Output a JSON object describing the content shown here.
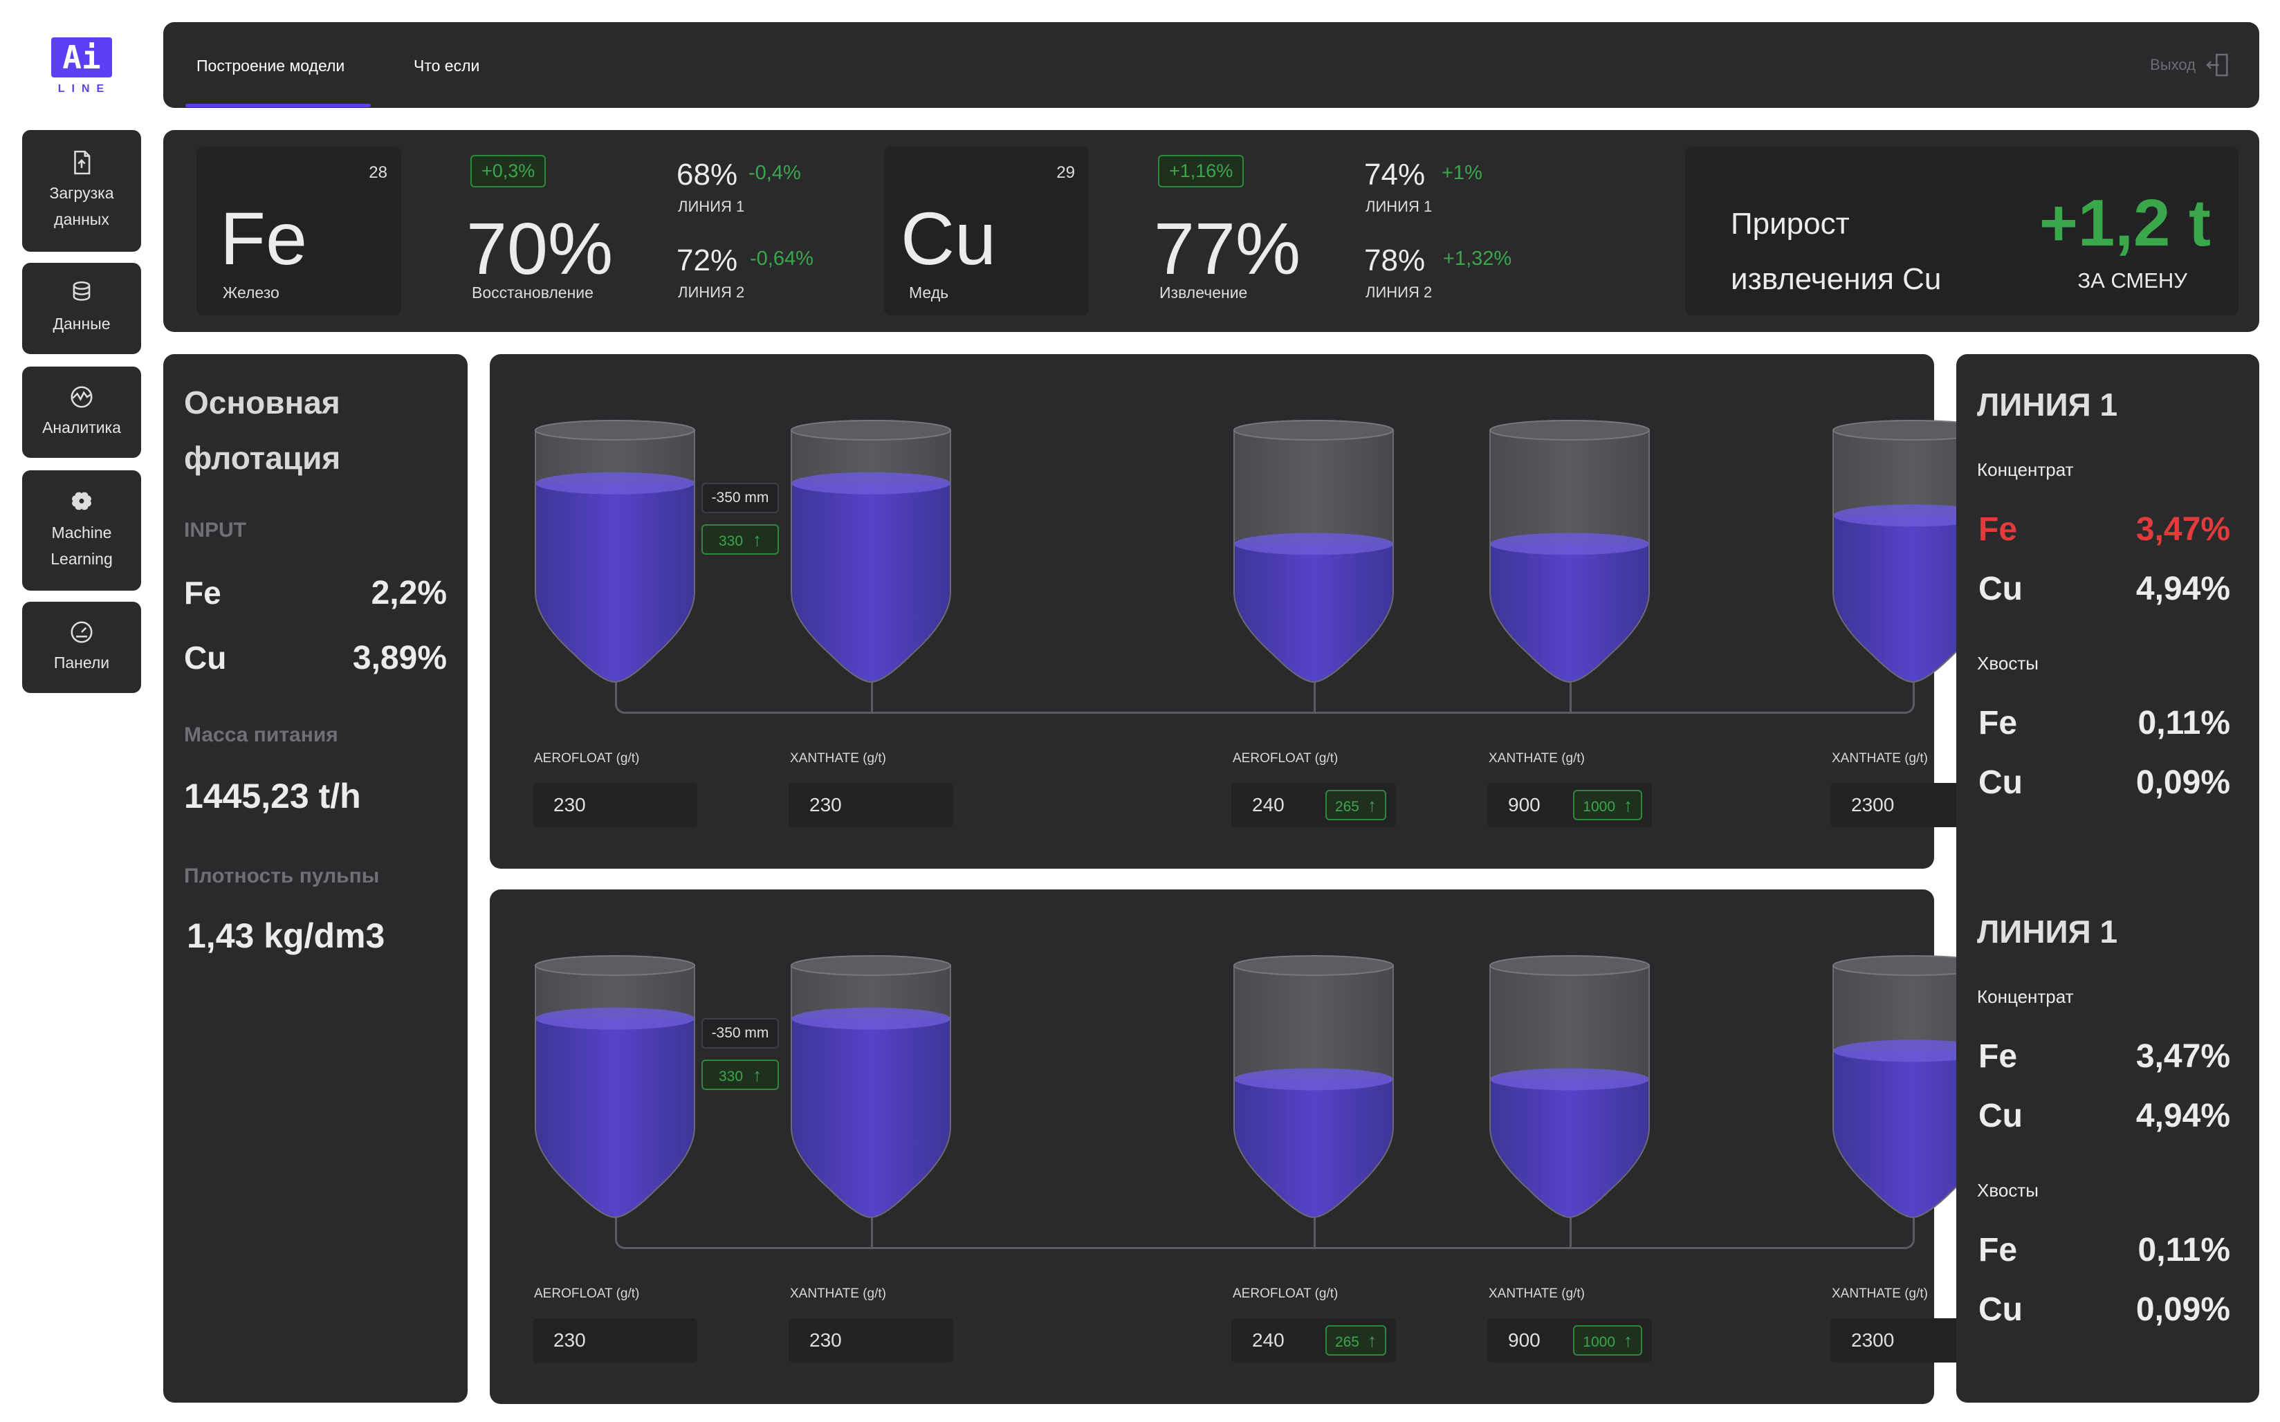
{
  "logo": {
    "main": "Ai",
    "sub": "LINE"
  },
  "sidebar": {
    "items": [
      {
        "label": "Загрузка данных",
        "icon": "upload-file-icon"
      },
      {
        "label": "Данные",
        "icon": "database-icon"
      },
      {
        "label": "Аналитика",
        "icon": "analytics-icon"
      },
      {
        "label": "Machine Learning",
        "icon": "brain-icon"
      },
      {
        "label": "Панели",
        "icon": "dashboard-gauge-icon"
      }
    ]
  },
  "topbar": {
    "tabs": [
      {
        "label": "Построение модели",
        "active": true
      },
      {
        "label": "Что если",
        "active": false
      }
    ],
    "logout_label": "Выход",
    "accent_color": "#5b3ff2"
  },
  "kpi": {
    "fe": {
      "symbol": "Fe",
      "number": "28",
      "name": "Железо",
      "badge": "+0,3%",
      "value": "70%",
      "value_label": "Восстановление",
      "lines": [
        {
          "pct": "68%",
          "delta": "-0,4%",
          "label": "ЛИНИЯ 1"
        },
        {
          "pct": "72%",
          "delta": "-0,64%",
          "label": "ЛИНИЯ 2"
        }
      ]
    },
    "cu": {
      "symbol": "Cu",
      "number": "29",
      "name": "Медь",
      "badge": "+1,16%",
      "value": "77%",
      "value_label": "Извлечение",
      "lines": [
        {
          "pct": "74%",
          "delta": "+1%",
          "label": "ЛИНИЯ 1"
        },
        {
          "pct": "78%",
          "delta": "+1,32%",
          "label": "ЛИНИЯ 2"
        }
      ]
    },
    "gain": {
      "label_line1": "Прирост",
      "label_line2": "извлечения Cu",
      "value": "+1,2 t",
      "sub": "ЗА СМЕНУ"
    },
    "positive_color": "#3aa74a"
  },
  "left_panel": {
    "title_line1": "Основная",
    "title_line2": "флотация",
    "input_label": "INPUT",
    "fe_label": "Fe",
    "fe_value": "2,2%",
    "cu_label": "Cu",
    "cu_value": "3,89%",
    "mass_label": "Масса питания",
    "mass_value": "1445,23 t/h",
    "density_label": "Плотность пульпы",
    "density_value": "1,43 kg/dm3"
  },
  "flotation_lines": [
    {
      "level_adjust": "-350 mm",
      "level_recommend": "330",
      "tanks": [
        {
          "fill": 0.72,
          "reagent": "AEROFLOAT (g/t)",
          "value": "230",
          "recommend": null
        },
        {
          "fill": 0.72,
          "reagent": "XANTHATE (g/t)",
          "value": "230",
          "recommend": null
        },
        {
          "fill": 0.4,
          "reagent": "AEROFLOAT (g/t)",
          "value": "240",
          "recommend": "265"
        },
        {
          "fill": 0.4,
          "reagent": "XANTHATE (g/t)",
          "value": "900",
          "recommend": "1000"
        },
        {
          "fill": 0.55,
          "reagent": "XANTHATE (g/t)",
          "value": "2300",
          "recommend": null
        }
      ]
    },
    {
      "level_adjust": "-350 mm",
      "level_recommend": "330",
      "tanks": [
        {
          "fill": 0.72,
          "reagent": "AEROFLOAT (g/t)",
          "value": "230",
          "recommend": null
        },
        {
          "fill": 0.72,
          "reagent": "XANTHATE (g/t)",
          "value": "230",
          "recommend": null
        },
        {
          "fill": 0.4,
          "reagent": "AEROFLOAT (g/t)",
          "value": "240",
          "recommend": "265"
        },
        {
          "fill": 0.4,
          "reagent": "XANTHATE (g/t)",
          "value": "900",
          "recommend": "1000"
        },
        {
          "fill": 0.55,
          "reagent": "XANTHATE (g/t)",
          "value": "2300",
          "recommend": null
        }
      ]
    }
  ],
  "right_panel": {
    "blocks": [
      {
        "title": "ЛИНИЯ 1",
        "concentrate_label": "Концентрат",
        "conc_fe_label": "Fe",
        "conc_fe": "3,47%",
        "conc_fe_alert": true,
        "conc_cu_label": "Cu",
        "conc_cu": "4,94%",
        "tails_label": "Хвосты",
        "tail_fe_label": "Fe",
        "tail_fe": "0,11%",
        "tail_cu_label": "Cu",
        "tail_cu": "0,09%"
      },
      {
        "title": "ЛИНИЯ 1",
        "concentrate_label": "Концентрат",
        "conc_fe_label": "Fe",
        "conc_fe": "3,47%",
        "conc_fe_alert": false,
        "conc_cu_label": "Cu",
        "conc_cu": "4,94%",
        "tails_label": "Хвосты",
        "tail_fe_label": "Fe",
        "tail_fe": "0,11%",
        "tail_cu_label": "Cu",
        "tail_cu": "0,09%"
      }
    ],
    "alert_color": "#e23b3b"
  }
}
